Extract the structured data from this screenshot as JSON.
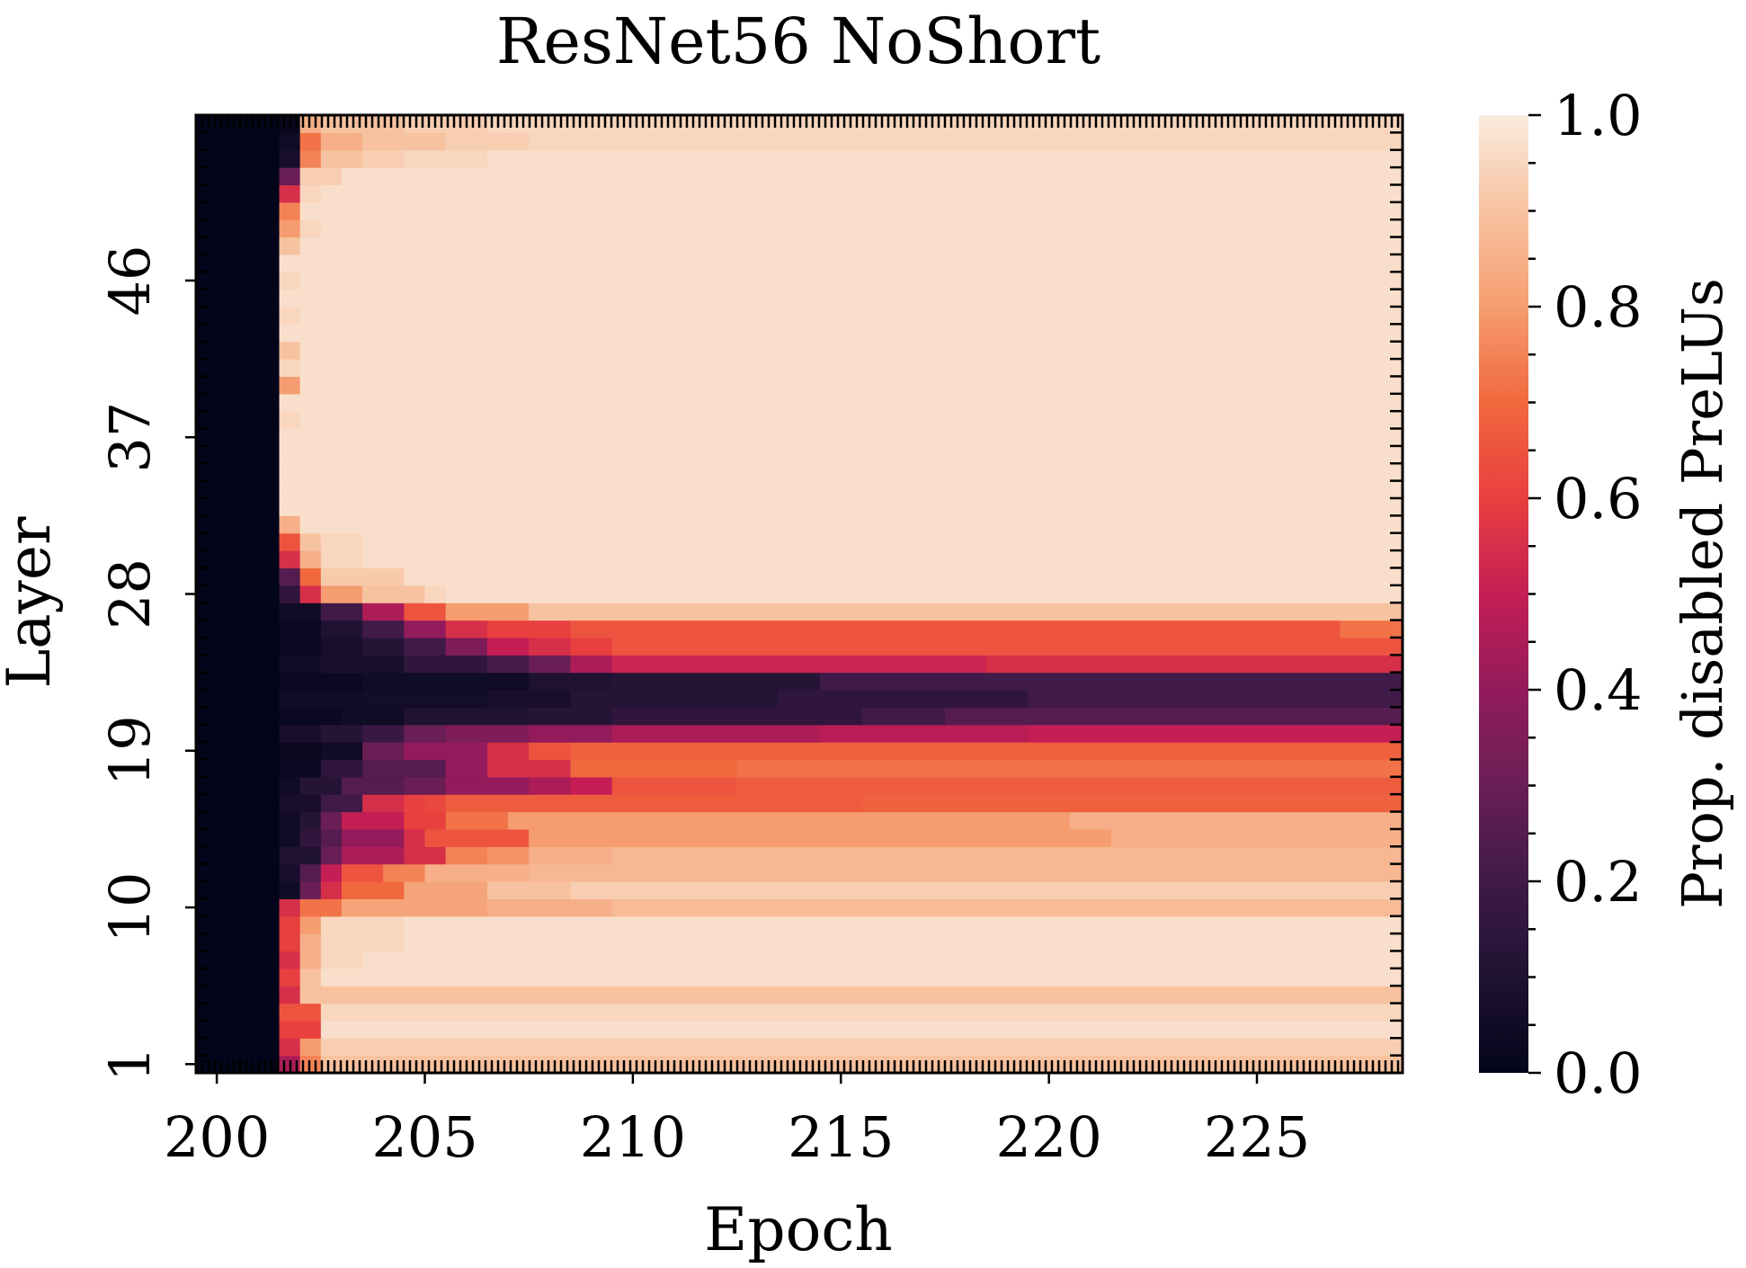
{
  "chart_data": {
    "type": "heatmap",
    "title": "ResNet56 NoShort",
    "xlabel": "Epoch",
    "ylabel": "Layer",
    "colorbar_label": "Prop. disabled PreLUs",
    "x_tick_labels": [
      "200",
      "205",
      "210",
      "215",
      "220",
      "225"
    ],
    "x_ticks": [
      200,
      205,
      210,
      215,
      220,
      225
    ],
    "y_tick_labels": [
      "1",
      "10",
      "19",
      "28",
      "37",
      "46"
    ],
    "y_ticks": [
      1,
      10,
      19,
      28,
      37,
      46
    ],
    "colorbar_tick_labels": [
      "0.0",
      "0.2",
      "0.4",
      "0.6",
      "0.8",
      "1.0"
    ],
    "colorbar_ticks": [
      0.0,
      0.2,
      0.4,
      0.6,
      0.8,
      1.0
    ],
    "value_range": [
      0,
      1
    ],
    "colormap": "rocket",
    "colorscale": [
      [
        0.0,
        "#03051A"
      ],
      [
        0.1,
        "#1F1232"
      ],
      [
        0.2,
        "#401A48"
      ],
      [
        0.3,
        "#691F56"
      ],
      [
        0.4,
        "#931B5B"
      ],
      [
        0.5,
        "#C41E55"
      ],
      [
        0.6,
        "#E83F3F"
      ],
      [
        0.7,
        "#F1683E"
      ],
      [
        0.8,
        "#F59D70"
      ],
      [
        0.9,
        "#F7C2A0"
      ],
      [
        1.0,
        "#FAEBDD"
      ]
    ],
    "epochs": [
      200,
      201,
      202,
      203,
      204,
      205,
      206,
      207,
      208,
      209,
      210,
      211,
      212,
      213,
      214,
      215,
      216,
      217,
      218,
      219,
      220,
      221,
      222,
      223,
      224,
      225,
      226,
      227,
      228
    ],
    "layers": 55,
    "note_layers_bottom_to_top": "values[i] is layer i+1; each row lists epochs 200..228",
    "segments_doc": "each layer row is given as [start_epoch, value] steps applied until the next step",
    "layer_profiles": [
      [
        [
          200,
          0.0
        ],
        [
          202,
          0.45
        ],
        [
          202.5,
          0.75
        ],
        [
          203,
          0.9
        ]
      ],
      [
        [
          200,
          0.0
        ],
        [
          202,
          0.55
        ],
        [
          202.5,
          0.8
        ],
        [
          203,
          0.93
        ]
      ],
      [
        [
          200,
          0.0
        ],
        [
          202,
          0.6
        ],
        [
          203,
          0.97
        ]
      ],
      [
        [
          200,
          0.0
        ],
        [
          202,
          0.65
        ],
        [
          203,
          0.95
        ]
      ],
      [
        [
          200,
          0.0
        ],
        [
          202,
          0.55
        ],
        [
          202.5,
          0.9
        ]
      ],
      [
        [
          200,
          0.0
        ],
        [
          202,
          0.6
        ],
        [
          202.5,
          0.9
        ],
        [
          203,
          0.97
        ]
      ],
      [
        [
          200,
          0.0
        ],
        [
          202,
          0.55
        ],
        [
          202.5,
          0.85
        ],
        [
          203,
          0.95
        ],
        [
          204,
          0.97
        ]
      ],
      [
        [
          200,
          0.0
        ],
        [
          202,
          0.6
        ],
        [
          202.5,
          0.85
        ],
        [
          203,
          0.95
        ],
        [
          205,
          0.97
        ]
      ],
      [
        [
          200,
          0.0
        ],
        [
          202,
          0.6
        ],
        [
          202.5,
          0.8
        ],
        [
          203,
          0.95
        ],
        [
          205,
          0.97
        ]
      ],
      [
        [
          200,
          0.0
        ],
        [
          202,
          0.55
        ],
        [
          202.5,
          0.72
        ],
        [
          203.5,
          0.82
        ],
        [
          207,
          0.85
        ],
        [
          210,
          0.88
        ]
      ],
      [
        [
          200,
          0.0
        ],
        [
          202,
          0.05
        ],
        [
          202.5,
          0.3
        ],
        [
          203,
          0.55
        ],
        [
          203.5,
          0.7
        ],
        [
          205,
          0.82
        ],
        [
          207,
          0.9
        ],
        [
          209,
          0.93
        ]
      ],
      [
        [
          200,
          0.0
        ],
        [
          202,
          0.08
        ],
        [
          202.5,
          0.25
        ],
        [
          203,
          0.5
        ],
        [
          203.5,
          0.65
        ],
        [
          204.5,
          0.75
        ],
        [
          205.5,
          0.85
        ],
        [
          208,
          0.87
        ]
      ],
      [
        [
          200,
          0.0
        ],
        [
          202,
          0.1
        ],
        [
          203,
          0.3
        ],
        [
          203.5,
          0.45
        ],
        [
          205,
          0.55
        ],
        [
          206,
          0.75
        ],
        [
          207,
          0.78
        ],
        [
          208,
          0.85
        ],
        [
          210,
          0.87
        ]
      ],
      [
        [
          200,
          0.0
        ],
        [
          202,
          0.05
        ],
        [
          202.5,
          0.15
        ],
        [
          203,
          0.25
        ],
        [
          203.5,
          0.4
        ],
        [
          205,
          0.55
        ],
        [
          205.5,
          0.65
        ],
        [
          208,
          0.8
        ],
        [
          222,
          0.85
        ]
      ],
      [
        [
          200,
          0.0
        ],
        [
          202,
          0.05
        ],
        [
          202.5,
          0.12
        ],
        [
          203,
          0.3
        ],
        [
          203.5,
          0.5
        ],
        [
          205,
          0.6
        ],
        [
          206,
          0.72
        ],
        [
          207.5,
          0.8
        ],
        [
          221,
          0.85
        ]
      ],
      [
        [
          200,
          0.0
        ],
        [
          202,
          0.08
        ],
        [
          203,
          0.2
        ],
        [
          204,
          0.55
        ],
        [
          205,
          0.6
        ],
        [
          205.5,
          0.62
        ],
        [
          206,
          0.67
        ],
        [
          216,
          0.68
        ]
      ],
      [
        [
          200,
          0.0
        ],
        [
          202,
          0.05
        ],
        [
          202.5,
          0.12
        ],
        [
          203.5,
          0.25
        ],
        [
          205,
          0.3
        ],
        [
          206,
          0.4
        ],
        [
          208,
          0.45
        ],
        [
          209,
          0.5
        ],
        [
          210,
          0.65
        ],
        [
          213,
          0.67
        ]
      ],
      [
        [
          200,
          0.0
        ],
        [
          202,
          0.03
        ],
        [
          203,
          0.15
        ],
        [
          204,
          0.25
        ],
        [
          206,
          0.4
        ],
        [
          207,
          0.55
        ],
        [
          209,
          0.7
        ],
        [
          213,
          0.72
        ]
      ],
      [
        [
          200,
          0.0
        ],
        [
          202,
          0.02
        ],
        [
          203,
          0.05
        ],
        [
          204,
          0.3
        ],
        [
          205,
          0.4
        ],
        [
          207,
          0.55
        ],
        [
          208,
          0.65
        ],
        [
          209,
          0.68
        ]
      ],
      [
        [
          200,
          0.0
        ],
        [
          202,
          0.08
        ],
        [
          203,
          0.12
        ],
        [
          204,
          0.18
        ],
        [
          205,
          0.3
        ],
        [
          206,
          0.35
        ],
        [
          208,
          0.4
        ],
        [
          210,
          0.45
        ],
        [
          215,
          0.48
        ],
        [
          220,
          0.5
        ]
      ],
      [
        [
          200,
          0.0
        ],
        [
          202,
          0.03
        ],
        [
          203.5,
          0.05
        ],
        [
          205,
          0.1
        ],
        [
          208,
          0.12
        ],
        [
          210,
          0.15
        ],
        [
          216,
          0.2
        ],
        [
          218,
          0.25
        ]
      ],
      [
        [
          200,
          0.0
        ],
        [
          202,
          0.05
        ],
        [
          204,
          0.06
        ],
        [
          207,
          0.08
        ],
        [
          209,
          0.12
        ],
        [
          214,
          0.15
        ],
        [
          220,
          0.2
        ]
      ],
      [
        [
          200,
          0.0
        ],
        [
          202,
          0.03
        ],
        [
          204,
          0.05
        ],
        [
          208,
          0.1
        ],
        [
          210,
          0.12
        ],
        [
          215,
          0.2
        ]
      ],
      [
        [
          200,
          0.0
        ],
        [
          202,
          0.05
        ],
        [
          203,
          0.08
        ],
        [
          205,
          0.15
        ],
        [
          207,
          0.22
        ],
        [
          208,
          0.3
        ],
        [
          209,
          0.45
        ],
        [
          210,
          0.52
        ],
        [
          219,
          0.55
        ]
      ],
      [
        [
          200,
          0.0
        ],
        [
          202,
          0.03
        ],
        [
          203,
          0.08
        ],
        [
          204,
          0.12
        ],
        [
          205,
          0.2
        ],
        [
          206,
          0.35
        ],
        [
          207,
          0.5
        ],
        [
          208,
          0.55
        ],
        [
          209,
          0.6
        ],
        [
          210,
          0.65
        ]
      ],
      [
        [
          200,
          0.0
        ],
        [
          202,
          0.03
        ],
        [
          203,
          0.1
        ],
        [
          204,
          0.2
        ],
        [
          205,
          0.4
        ],
        [
          206,
          0.55
        ],
        [
          207,
          0.6
        ],
        [
          209,
          0.65
        ],
        [
          227.5,
          0.72
        ]
      ],
      [
        [
          200,
          0.0
        ],
        [
          202,
          0.05
        ],
        [
          203,
          0.2
        ],
        [
          204,
          0.45
        ],
        [
          205,
          0.65
        ],
        [
          206,
          0.8
        ],
        [
          208,
          0.9
        ]
      ],
      [
        [
          200,
          0.0
        ],
        [
          202,
          0.15
        ],
        [
          202.5,
          0.55
        ],
        [
          203,
          0.8
        ],
        [
          204,
          0.9
        ],
        [
          205.5,
          0.95
        ],
        [
          206,
          0.97
        ]
      ],
      [
        [
          200,
          0.0
        ],
        [
          202,
          0.25
        ],
        [
          202.5,
          0.7
        ],
        [
          203,
          0.92
        ],
        [
          205,
          0.97
        ]
      ],
      [
        [
          200,
          0.0
        ],
        [
          202,
          0.55
        ],
        [
          202.5,
          0.85
        ],
        [
          203,
          0.95
        ],
        [
          204,
          0.97
        ]
      ],
      [
        [
          200,
          0.0
        ],
        [
          202,
          0.65
        ],
        [
          202.5,
          0.9
        ],
        [
          203,
          0.95
        ],
        [
          204,
          0.97
        ]
      ],
      [
        [
          200,
          0.0
        ],
        [
          202,
          0.85
        ],
        [
          202.5,
          0.97
        ]
      ],
      [
        [
          200,
          0.0
        ],
        [
          202,
          0.97
        ]
      ],
      [
        [
          200,
          0.0
        ],
        [
          202,
          0.97
        ]
      ],
      [
        [
          200,
          0.0
        ],
        [
          202,
          0.97
        ]
      ],
      [
        [
          200,
          0.0
        ],
        [
          202,
          0.97
        ]
      ],
      [
        [
          200,
          0.0
        ],
        [
          202,
          0.97
        ]
      ],
      [
        [
          200,
          0.0
        ],
        [
          202,
          0.95
        ],
        [
          202.5,
          0.97
        ]
      ],
      [
        [
          200,
          0.0
        ],
        [
          202,
          0.97
        ]
      ],
      [
        [
          200,
          0.0
        ],
        [
          202,
          0.8
        ],
        [
          202.5,
          0.97
        ]
      ],
      [
        [
          200,
          0.0
        ],
        [
          202,
          0.95
        ],
        [
          202.5,
          0.97
        ]
      ],
      [
        [
          200,
          0.0
        ],
        [
          202,
          0.9
        ],
        [
          202.5,
          0.97
        ]
      ],
      [
        [
          200,
          0.0
        ],
        [
          202,
          0.97
        ]
      ],
      [
        [
          200,
          0.0
        ],
        [
          202,
          0.95
        ],
        [
          202.5,
          0.97
        ]
      ],
      [
        [
          200,
          0.0
        ],
        [
          202,
          0.97
        ]
      ],
      [
        [
          200,
          0.0
        ],
        [
          202,
          0.95
        ],
        [
          202.5,
          0.97
        ]
      ],
      [
        [
          200,
          0.0
        ],
        [
          202,
          0.97
        ]
      ],
      [
        [
          200,
          0.0
        ],
        [
          202,
          0.9
        ],
        [
          202.5,
          0.97
        ]
      ],
      [
        [
          200,
          0.0
        ],
        [
          202,
          0.8
        ],
        [
          202.5,
          0.95
        ],
        [
          203,
          0.97
        ]
      ],
      [
        [
          200,
          0.0
        ],
        [
          202,
          0.75
        ],
        [
          202.5,
          0.97
        ]
      ],
      [
        [
          200,
          0.0
        ],
        [
          202,
          0.55
        ],
        [
          202.5,
          0.95
        ],
        [
          203,
          0.97
        ]
      ],
      [
        [
          200,
          0.0
        ],
        [
          202,
          0.3
        ],
        [
          202.5,
          0.93
        ],
        [
          203.5,
          0.97
        ]
      ],
      [
        [
          200,
          0.0
        ],
        [
          202,
          0.08
        ],
        [
          202.5,
          0.75
        ],
        [
          203,
          0.9
        ],
        [
          204,
          0.93
        ],
        [
          205,
          0.95
        ],
        [
          207,
          0.97
        ]
      ],
      [
        [
          200,
          0.0
        ],
        [
          202,
          0.05
        ],
        [
          202.5,
          0.72
        ],
        [
          203,
          0.85
        ],
        [
          204,
          0.9
        ],
        [
          206,
          0.93
        ],
        [
          208,
          0.95
        ]
      ],
      [
        [
          200,
          0.0
        ],
        [
          202,
          0.02
        ],
        [
          202.5,
          0.85
        ],
        [
          203,
          0.9
        ],
        [
          205,
          0.93
        ],
        [
          207,
          0.95
        ]
      ]
    ]
  }
}
